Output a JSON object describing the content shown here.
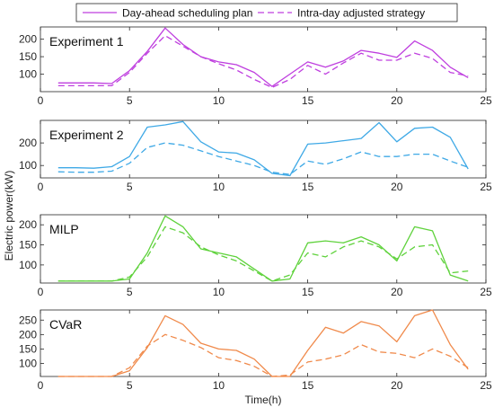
{
  "legend": {
    "items": [
      {
        "label": "Day-ahead scheduling plan",
        "style": "solid"
      },
      {
        "label": "Intra-day adjusted strategy",
        "style": "dashed"
      }
    ]
  },
  "chart_data": [
    {
      "type": "line",
      "title": "Experiment 1",
      "color": "#bf3fdf",
      "x": [
        1,
        2,
        3,
        4,
        5,
        6,
        7,
        8,
        9,
        10,
        11,
        12,
        13,
        14,
        15,
        16,
        17,
        18,
        19,
        20,
        21,
        22,
        23,
        24
      ],
      "xlim": [
        0,
        25
      ],
      "xticks": [
        0,
        5,
        10,
        15,
        20,
        25
      ],
      "ylim": [
        50,
        235
      ],
      "yticks": [
        100,
        150,
        200
      ],
      "series": [
        {
          "name": "Day-ahead scheduling plan",
          "style": "solid",
          "values": [
            75,
            75,
            75,
            73,
            110,
            165,
            232,
            185,
            150,
            135,
            127,
            105,
            65,
            100,
            135,
            120,
            138,
            168,
            160,
            148,
            195,
            168,
            120,
            90
          ]
        },
        {
          "name": "Intra-day adjusted strategy",
          "style": "dashed",
          "values": [
            67,
            67,
            67,
            67,
            105,
            160,
            210,
            180,
            150,
            130,
            112,
            85,
            62,
            85,
            125,
            100,
            132,
            160,
            140,
            140,
            160,
            145,
            105,
            95
          ]
        }
      ]
    },
    {
      "type": "line",
      "title": "Experiment 2",
      "color": "#3fa9e6",
      "x": [
        1,
        2,
        3,
        4,
        5,
        6,
        7,
        8,
        9,
        10,
        11,
        12,
        13,
        14,
        15,
        16,
        17,
        18,
        19,
        20,
        21,
        22,
        23,
        24
      ],
      "xlim": [
        0,
        25
      ],
      "xticks": [
        0,
        5,
        10,
        15,
        20,
        25
      ],
      "ylim": [
        45,
        300
      ],
      "yticks": [
        100,
        200
      ],
      "series": [
        {
          "name": "Day-ahead scheduling plan",
          "style": "solid",
          "values": [
            90,
            90,
            88,
            95,
            140,
            270,
            280,
            295,
            205,
            160,
            155,
            125,
            65,
            55,
            195,
            200,
            210,
            220,
            290,
            205,
            265,
            270,
            225,
            85
          ]
        },
        {
          "name": "Intra-day adjusted strategy",
          "style": "dashed",
          "values": [
            72,
            70,
            70,
            75,
            110,
            180,
            200,
            190,
            165,
            140,
            120,
            100,
            70,
            60,
            120,
            105,
            130,
            160,
            140,
            140,
            150,
            150,
            120,
            92
          ]
        }
      ]
    },
    {
      "type": "line",
      "title": "MILP",
      "color": "#5fd23c",
      "x": [
        1,
        2,
        3,
        4,
        5,
        6,
        7,
        8,
        9,
        10,
        11,
        12,
        13,
        14,
        15,
        16,
        17,
        18,
        19,
        20,
        21,
        22,
        23,
        24
      ],
      "xlim": [
        0,
        25
      ],
      "xticks": [
        0,
        5,
        10,
        15,
        20,
        25
      ],
      "ylim": [
        55,
        225
      ],
      "yticks": [
        100,
        150,
        200
      ],
      "series": [
        {
          "name": "Day-ahead scheduling plan",
          "style": "solid",
          "values": [
            60,
            60,
            60,
            60,
            65,
            130,
            222,
            195,
            140,
            130,
            120,
            90,
            60,
            65,
            155,
            160,
            155,
            170,
            150,
            110,
            195,
            185,
            75,
            60
          ]
        },
        {
          "name": "Intra-day adjusted strategy",
          "style": "dashed",
          "values": [
            60,
            60,
            60,
            60,
            70,
            120,
            195,
            180,
            145,
            125,
            110,
            85,
            60,
            75,
            130,
            120,
            145,
            160,
            145,
            115,
            145,
            150,
            80,
            85
          ]
        }
      ]
    },
    {
      "type": "line",
      "title": "CVaR",
      "color": "#f08a4b",
      "x": [
        1,
        2,
        3,
        4,
        5,
        6,
        7,
        8,
        9,
        10,
        11,
        12,
        13,
        14,
        15,
        16,
        17,
        18,
        19,
        20,
        21,
        22,
        23,
        24
      ],
      "xlim": [
        0,
        25
      ],
      "xticks": [
        0,
        5,
        10,
        15,
        20,
        25
      ],
      "xlabel": "Time(h)",
      "ylim": [
        55,
        285
      ],
      "yticks": [
        100,
        150,
        200,
        250
      ],
      "series": [
        {
          "name": "Day-ahead scheduling plan",
          "style": "solid",
          "values": [
            55,
            55,
            55,
            55,
            75,
            155,
            265,
            235,
            170,
            150,
            145,
            115,
            55,
            55,
            145,
            225,
            205,
            245,
            230,
            175,
            265,
            285,
            165,
            80
          ]
        },
        {
          "name": "Intra-day adjusted strategy",
          "style": "dashed",
          "values": [
            55,
            55,
            55,
            55,
            85,
            160,
            200,
            180,
            155,
            120,
            110,
            90,
            55,
            60,
            105,
            115,
            130,
            165,
            140,
            135,
            120,
            150,
            125,
            85
          ]
        }
      ]
    }
  ],
  "ylabel": "Electric power(kW)"
}
